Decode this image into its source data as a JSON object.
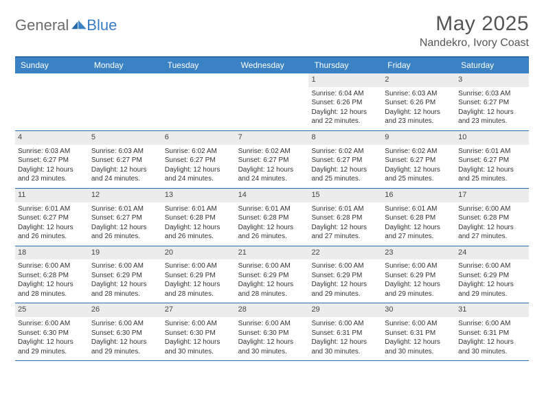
{
  "logo": {
    "text1": "General",
    "text2": "Blue"
  },
  "title": "May 2025",
  "location": "Nandekro, Ivory Coast",
  "colors": {
    "header_bar": "#3a82c4",
    "border": "#2b6aa8",
    "daynum_bg": "#ececec",
    "logo_gray": "#6b6b6b",
    "logo_blue": "#3a7cc4"
  },
  "dow": [
    "Sunday",
    "Monday",
    "Tuesday",
    "Wednesday",
    "Thursday",
    "Friday",
    "Saturday"
  ],
  "weeks": [
    [
      {
        "n": "",
        "sr": "",
        "ss": "",
        "dl": ""
      },
      {
        "n": "",
        "sr": "",
        "ss": "",
        "dl": ""
      },
      {
        "n": "",
        "sr": "",
        "ss": "",
        "dl": ""
      },
      {
        "n": "",
        "sr": "",
        "ss": "",
        "dl": ""
      },
      {
        "n": "1",
        "sr": "Sunrise: 6:04 AM",
        "ss": "Sunset: 6:26 PM",
        "dl": "Daylight: 12 hours and 22 minutes."
      },
      {
        "n": "2",
        "sr": "Sunrise: 6:03 AM",
        "ss": "Sunset: 6:26 PM",
        "dl": "Daylight: 12 hours and 23 minutes."
      },
      {
        "n": "3",
        "sr": "Sunrise: 6:03 AM",
        "ss": "Sunset: 6:27 PM",
        "dl": "Daylight: 12 hours and 23 minutes."
      }
    ],
    [
      {
        "n": "4",
        "sr": "Sunrise: 6:03 AM",
        "ss": "Sunset: 6:27 PM",
        "dl": "Daylight: 12 hours and 23 minutes."
      },
      {
        "n": "5",
        "sr": "Sunrise: 6:03 AM",
        "ss": "Sunset: 6:27 PM",
        "dl": "Daylight: 12 hours and 24 minutes."
      },
      {
        "n": "6",
        "sr": "Sunrise: 6:02 AM",
        "ss": "Sunset: 6:27 PM",
        "dl": "Daylight: 12 hours and 24 minutes."
      },
      {
        "n": "7",
        "sr": "Sunrise: 6:02 AM",
        "ss": "Sunset: 6:27 PM",
        "dl": "Daylight: 12 hours and 24 minutes."
      },
      {
        "n": "8",
        "sr": "Sunrise: 6:02 AM",
        "ss": "Sunset: 6:27 PM",
        "dl": "Daylight: 12 hours and 25 minutes."
      },
      {
        "n": "9",
        "sr": "Sunrise: 6:02 AM",
        "ss": "Sunset: 6:27 PM",
        "dl": "Daylight: 12 hours and 25 minutes."
      },
      {
        "n": "10",
        "sr": "Sunrise: 6:01 AM",
        "ss": "Sunset: 6:27 PM",
        "dl": "Daylight: 12 hours and 25 minutes."
      }
    ],
    [
      {
        "n": "11",
        "sr": "Sunrise: 6:01 AM",
        "ss": "Sunset: 6:27 PM",
        "dl": "Daylight: 12 hours and 26 minutes."
      },
      {
        "n": "12",
        "sr": "Sunrise: 6:01 AM",
        "ss": "Sunset: 6:27 PM",
        "dl": "Daylight: 12 hours and 26 minutes."
      },
      {
        "n": "13",
        "sr": "Sunrise: 6:01 AM",
        "ss": "Sunset: 6:28 PM",
        "dl": "Daylight: 12 hours and 26 minutes."
      },
      {
        "n": "14",
        "sr": "Sunrise: 6:01 AM",
        "ss": "Sunset: 6:28 PM",
        "dl": "Daylight: 12 hours and 26 minutes."
      },
      {
        "n": "15",
        "sr": "Sunrise: 6:01 AM",
        "ss": "Sunset: 6:28 PM",
        "dl": "Daylight: 12 hours and 27 minutes."
      },
      {
        "n": "16",
        "sr": "Sunrise: 6:01 AM",
        "ss": "Sunset: 6:28 PM",
        "dl": "Daylight: 12 hours and 27 minutes."
      },
      {
        "n": "17",
        "sr": "Sunrise: 6:00 AM",
        "ss": "Sunset: 6:28 PM",
        "dl": "Daylight: 12 hours and 27 minutes."
      }
    ],
    [
      {
        "n": "18",
        "sr": "Sunrise: 6:00 AM",
        "ss": "Sunset: 6:28 PM",
        "dl": "Daylight: 12 hours and 28 minutes."
      },
      {
        "n": "19",
        "sr": "Sunrise: 6:00 AM",
        "ss": "Sunset: 6:29 PM",
        "dl": "Daylight: 12 hours and 28 minutes."
      },
      {
        "n": "20",
        "sr": "Sunrise: 6:00 AM",
        "ss": "Sunset: 6:29 PM",
        "dl": "Daylight: 12 hours and 28 minutes."
      },
      {
        "n": "21",
        "sr": "Sunrise: 6:00 AM",
        "ss": "Sunset: 6:29 PM",
        "dl": "Daylight: 12 hours and 28 minutes."
      },
      {
        "n": "22",
        "sr": "Sunrise: 6:00 AM",
        "ss": "Sunset: 6:29 PM",
        "dl": "Daylight: 12 hours and 29 minutes."
      },
      {
        "n": "23",
        "sr": "Sunrise: 6:00 AM",
        "ss": "Sunset: 6:29 PM",
        "dl": "Daylight: 12 hours and 29 minutes."
      },
      {
        "n": "24",
        "sr": "Sunrise: 6:00 AM",
        "ss": "Sunset: 6:29 PM",
        "dl": "Daylight: 12 hours and 29 minutes."
      }
    ],
    [
      {
        "n": "25",
        "sr": "Sunrise: 6:00 AM",
        "ss": "Sunset: 6:30 PM",
        "dl": "Daylight: 12 hours and 29 minutes."
      },
      {
        "n": "26",
        "sr": "Sunrise: 6:00 AM",
        "ss": "Sunset: 6:30 PM",
        "dl": "Daylight: 12 hours and 29 minutes."
      },
      {
        "n": "27",
        "sr": "Sunrise: 6:00 AM",
        "ss": "Sunset: 6:30 PM",
        "dl": "Daylight: 12 hours and 30 minutes."
      },
      {
        "n": "28",
        "sr": "Sunrise: 6:00 AM",
        "ss": "Sunset: 6:30 PM",
        "dl": "Daylight: 12 hours and 30 minutes."
      },
      {
        "n": "29",
        "sr": "Sunrise: 6:00 AM",
        "ss": "Sunset: 6:31 PM",
        "dl": "Daylight: 12 hours and 30 minutes."
      },
      {
        "n": "30",
        "sr": "Sunrise: 6:00 AM",
        "ss": "Sunset: 6:31 PM",
        "dl": "Daylight: 12 hours and 30 minutes."
      },
      {
        "n": "31",
        "sr": "Sunrise: 6:00 AM",
        "ss": "Sunset: 6:31 PM",
        "dl": "Daylight: 12 hours and 30 minutes."
      }
    ]
  ]
}
